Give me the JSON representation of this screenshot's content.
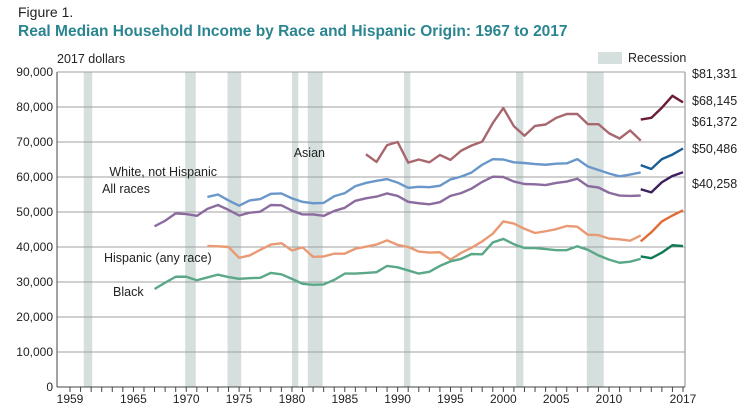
{
  "figure_label": "Figure 1.",
  "chart_data": {
    "type": "line",
    "title": "Real Median Household Income by Race and Hispanic Origin: 1967 to 2017",
    "ylabel": "2017 dollars",
    "xlim": [
      1959,
      2017
    ],
    "ylim": [
      0,
      90000
    ],
    "yticks": [
      0,
      10000,
      20000,
      30000,
      40000,
      50000,
      60000,
      70000,
      80000,
      90000
    ],
    "ytick_labels": [
      "0",
      "10,000",
      "20,000",
      "30,000",
      "40,000",
      "50,000",
      "60,000",
      "70,000",
      "80,000",
      "90,000"
    ],
    "xtick_labels": [
      "1959",
      "1965",
      "1970",
      "1975",
      "1980",
      "1985",
      "1990",
      "1995",
      "2000",
      "2005",
      "2010",
      "2017"
    ],
    "xticks": [
      1959,
      1965,
      1970,
      1975,
      1980,
      1985,
      1990,
      1995,
      2000,
      2005,
      2010,
      2017
    ],
    "grid": true,
    "legend": {
      "label": "Recession",
      "placement": "top-right",
      "color": "#d5e0de"
    },
    "recessions": [
      [
        1960.3,
        1961.1
      ],
      [
        1969.9,
        1970.9
      ],
      [
        1973.9,
        1975.2
      ],
      [
        1980.0,
        1980.6
      ],
      [
        1981.5,
        1982.9
      ],
      [
        1990.6,
        1991.2
      ],
      [
        2001.2,
        2001.9
      ],
      [
        2007.9,
        2009.5
      ]
    ],
    "series": [
      {
        "name": "Asian",
        "color": "#a8676e",
        "color_recent": "#6b1a38",
        "start": 1987,
        "end_label": "$81,331",
        "values": [
          66500,
          64300,
          69100,
          70000,
          64100,
          65000,
          64200,
          66300,
          64900,
          67500,
          69000,
          70100,
          75400,
          79700,
          74500,
          71800,
          74600,
          75000,
          76900,
          78000,
          78000,
          75100,
          75100,
          72500,
          71000,
          73300,
          70400
        ],
        "recent": [
          76400,
          76900,
          79800,
          83200,
          81331
        ]
      },
      {
        "name": "White, not Hispanic",
        "color": "#6a97c9",
        "color_recent": "#1b5e95",
        "start": 1972,
        "end_label": "$68,145",
        "values": [
          54300,
          55000,
          53300,
          51800,
          53300,
          53700,
          55200,
          55300,
          53900,
          52900,
          52500,
          52600,
          54500,
          55400,
          57400,
          58300,
          58900,
          59400,
          58400,
          56900,
          57200,
          57100,
          57500,
          59300,
          60100,
          61300,
          63500,
          65100,
          65000,
          64200,
          64000,
          63700,
          63500,
          63800,
          63900,
          65100,
          63000,
          62000,
          61000,
          60200,
          60700,
          61300
        ],
        "recent": [
          63400,
          62300,
          65100,
          66400,
          68145
        ]
      },
      {
        "name": "All races",
        "color": "#8c6b9e",
        "color_recent": "#3d1f5e",
        "start": 1967,
        "end_label": "$61,372",
        "values": [
          45900,
          47500,
          49600,
          49400,
          48900,
          50900,
          52000,
          50600,
          49000,
          49800,
          50100,
          52000,
          51900,
          50400,
          49300,
          49300,
          48900,
          50300,
          51200,
          53200,
          53900,
          54400,
          55300,
          54600,
          52900,
          52500,
          52200,
          52800,
          54600,
          55400,
          56700,
          58600,
          60100,
          60000,
          58700,
          58000,
          57900,
          57700,
          58300,
          58700,
          59500,
          57400,
          57000,
          55500,
          54700,
          54600,
          54700
        ],
        "recent": [
          56500,
          55600,
          58500,
          60300,
          61372
        ]
      },
      {
        "name": "Hispanic (any race)",
        "color": "#e99a74",
        "color_recent": "#e06b35",
        "start": 1972,
        "end_label": "$50,486",
        "values": [
          40300,
          40200,
          40000,
          36900,
          37600,
          39200,
          40700,
          41100,
          39000,
          39900,
          37200,
          37300,
          38100,
          38100,
          39500,
          40100,
          40700,
          41900,
          40600,
          40000,
          38700,
          38400,
          38500,
          36400,
          38300,
          39800,
          41600,
          43800,
          47300,
          46700,
          45200,
          44000,
          44500,
          45100,
          46000,
          45800,
          43500,
          43400,
          42400,
          42200,
          41800,
          43300
        ],
        "recent": [
          41600,
          44200,
          47300,
          49000,
          50486
        ]
      },
      {
        "name": "Black",
        "color": "#5aa888",
        "color_recent": "#0f7a57",
        "start": 1967,
        "end_label": "$40,258",
        "values": [
          28000,
          29800,
          31500,
          31500,
          30500,
          31300,
          32100,
          31400,
          30900,
          31100,
          31200,
          32600,
          32200,
          30900,
          29500,
          29200,
          29300,
          30600,
          32400,
          32400,
          32600,
          32800,
          34600,
          34200,
          33300,
          32400,
          32900,
          34600,
          35900,
          36600,
          38000,
          37900,
          41300,
          42300,
          40800,
          39700,
          39700,
          39400,
          39100,
          39100,
          40200,
          39200,
          37600,
          36400,
          35500,
          35800,
          36600
        ],
        "recent": [
          37300,
          36800,
          38400,
          40500,
          40258
        ]
      }
    ]
  }
}
